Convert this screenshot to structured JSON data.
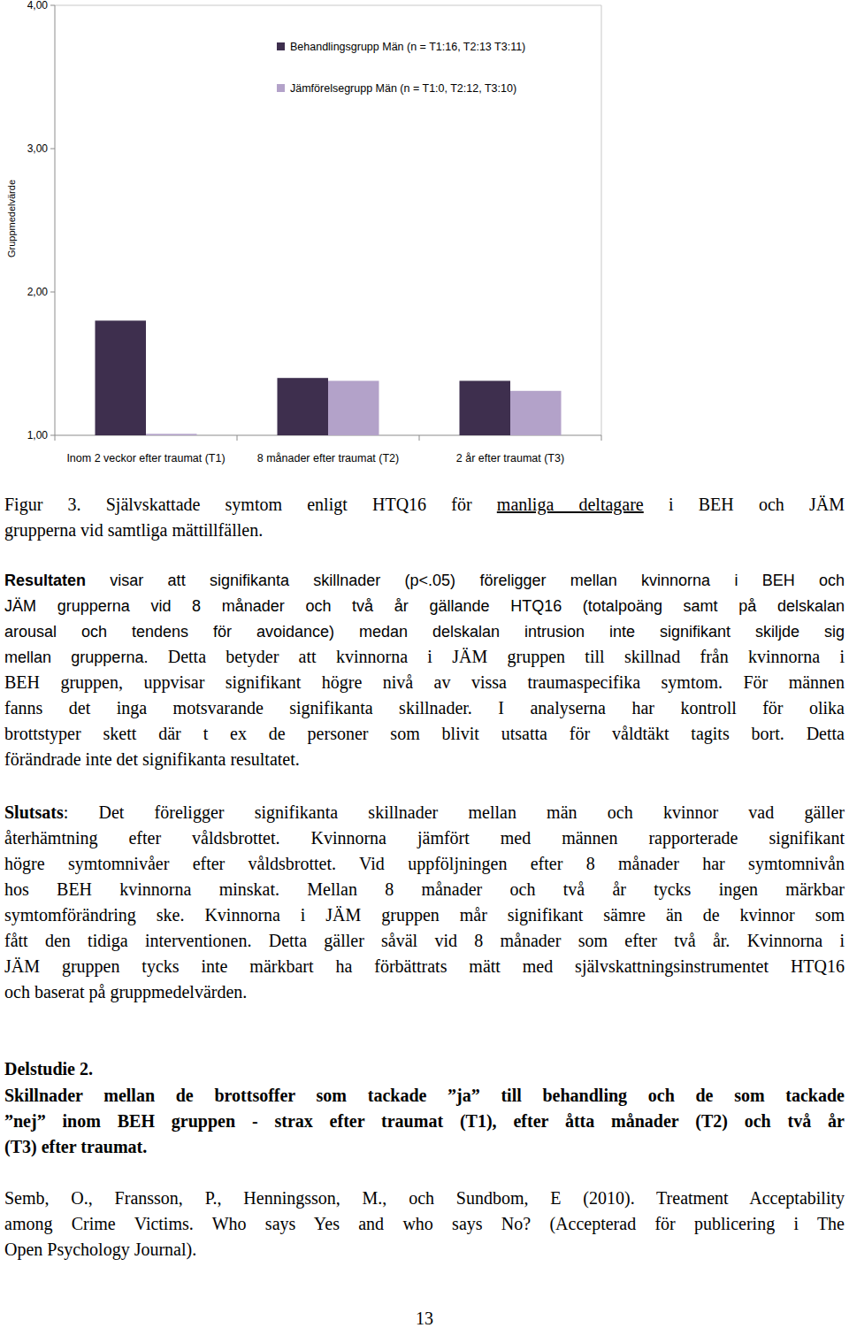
{
  "chart_data": {
    "type": "bar",
    "y_label": "Gruppmedelvärde",
    "categories": [
      "Inom 2 veckor efter traumat (T1)",
      "8 månader efter traumat (T2)",
      "2 år efter traumat (T3)"
    ],
    "series": [
      {
        "name": "Behandlingsgrupp Män (n = T1:16, T2:13 T3:11)",
        "color": "#3e2f4e",
        "values": [
          1.8,
          1.4,
          1.38
        ]
      },
      {
        "name": "Jämförelsegrupp Män (n = T1:0, T2:12, T3:10)",
        "color": "#b3a2c9",
        "values": [
          1.01,
          1.38,
          1.31
        ]
      }
    ],
    "ylim": [
      1,
      4
    ],
    "yticks": [
      {
        "value": 1,
        "label": "1,00"
      },
      {
        "value": 2,
        "label": "2,00"
      },
      {
        "value": 3,
        "label": "3,00"
      },
      {
        "value": 4,
        "label": "4,00"
      }
    ],
    "legend": "top",
    "grid": false
  },
  "document": {
    "paragraphs": [
      {
        "lines": [
          [
            "Figur 3. Självskattade symtom enligt HTQ16 för ",
            {
              "text": "manliga deltagare",
              "style": "underline"
            },
            " i BEH och JÄM"
          ],
          [
            "grupperna vid samtliga mättillfällen."
          ]
        ]
      },
      {
        "lines": [
          [
            {
              "text": "Resultaten",
              "style": "sans-bold"
            },
            {
              "text": " visar att signifikanta skillnader (p<.05) föreligger mellan kvinnorna i BEH och",
              "style": "sans"
            }
          ],
          [
            {
              "text": "JÄM grupperna vid 8 månader och två år gällande HTQ16 (totalpoäng samt på delskalan",
              "style": "sans"
            }
          ],
          [
            {
              "text": "arousal och tendens för avoidance) medan delskalan intrusion inte signifikant skiljde sig",
              "style": "sans"
            }
          ],
          [
            {
              "text": "mellan grupperna.",
              "style": "sans"
            },
            " Detta betyder att kvinnorna i JÄM gruppen till skillnad från kvinnorna i"
          ],
          [
            "BEH gruppen, uppvisar signifikant högre nivå av vissa traumaspecifika symtom. För männen"
          ],
          [
            "fanns det inga motsvarande signifikanta skillnader. I analyserna har kontroll för olika"
          ],
          [
            "brottstyper skett där t ex de personer som blivit utsatta för våldtäkt tagits bort. Detta"
          ],
          [
            "förändrade inte det signifikanta resultatet."
          ]
        ]
      },
      {
        "lines": [
          [
            {
              "text": "Slutsats",
              "style": "bold"
            },
            ": Det föreligger signifikanta skillnader mellan män och kvinnor vad gäller"
          ],
          [
            "återhämtning efter våldsbrottet. Kvinnorna jämfört med männen rapporterade signifikant"
          ],
          [
            "högre symtomnivåer efter våldsbrottet. Vid uppföljningen efter 8 månader har symtomnivån"
          ],
          [
            "hos BEH kvinnorna minskat. Mellan 8 månader och två år tycks ingen märkbar"
          ],
          [
            "symtomförändring ske. Kvinnorna i JÄM gruppen mår signifikant sämre än de kvinnor som"
          ],
          [
            "fått den tidiga interventionen. Detta gäller såväl vid 8 månader som efter två år. Kvinnorna i"
          ],
          [
            "JÄM gruppen tycks inte märkbart ha förbättrats mätt med självskattningsinstrumentet HTQ16"
          ],
          [
            "och baserat på gruppmedelvärden."
          ]
        ]
      },
      {
        "lines": [
          [
            {
              "text": "Delstudie 2.",
              "style": "bold"
            }
          ]
        ]
      },
      {
        "lines": [
          [
            {
              "text": "Skillnader mellan de brottsoffer som tackade ”ja” till behandling och de som tackade",
              "style": "bold"
            }
          ],
          [
            {
              "text": "”nej” inom BEH gruppen - strax efter traumat (T1), efter åtta månader (T2) och två år",
              "style": "bold"
            }
          ],
          [
            {
              "text": "(T3) efter traumat.",
              "style": "bold"
            }
          ]
        ]
      },
      {
        "lines": [
          [
            "Semb, O., Fransson, P., Henningsson, M., och Sundbom, E (2010). Treatment Acceptability"
          ],
          [
            "among Crime Victims. Who says Yes and who says No? (Accepterad för publicering i The"
          ],
          [
            "Open Psychology Journal)."
          ]
        ]
      }
    ],
    "page_number": "13"
  }
}
